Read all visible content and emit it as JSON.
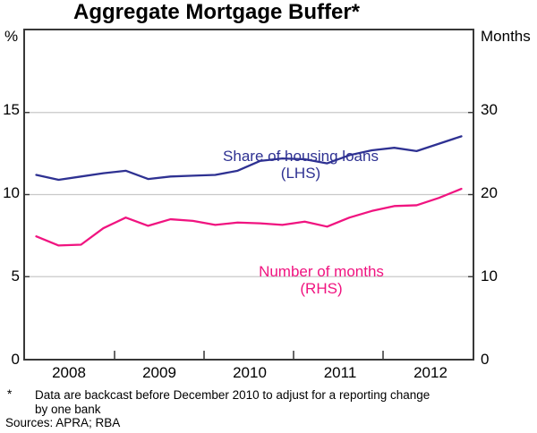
{
  "title": "Aggregate Mortgage Buffer*",
  "left_axis": {
    "unit": "%",
    "ticks": [
      "15",
      "10",
      "5",
      "0"
    ]
  },
  "right_axis": {
    "unit": "Months",
    "ticks": [
      "30",
      "20",
      "10",
      "0"
    ]
  },
  "x_axis": {
    "labels": [
      "2008",
      "2009",
      "2010",
      "2011",
      "2012"
    ]
  },
  "series_labels": {
    "lhs": {
      "line1": "Share of housing loans",
      "line2": "(LHS)"
    },
    "rhs": {
      "line1": "Number of months",
      "line2": "(RHS)"
    }
  },
  "footnote": {
    "marker": "*",
    "line1": "Data are backcast before December 2010 to adjust for a reporting change",
    "line2": "by one bank",
    "sources": "Sources: APRA; RBA"
  },
  "colors": {
    "lhs_line": "#2E3192",
    "rhs_line": "#F01480",
    "gridline": "#C9C9C9",
    "axis": "#383838",
    "tick": "#333333",
    "text": "#000000"
  },
  "chart_data": {
    "type": "line",
    "x_labels_quarters": [
      "2008 Q1",
      "2008 Q2",
      "2008 Q3",
      "2008 Q4",
      "2009 Q1",
      "2009 Q2",
      "2009 Q3",
      "2009 Q4",
      "2010 Q1",
      "2010 Q2",
      "2010 Q3",
      "2010 Q4",
      "2011 Q1",
      "2011 Q2",
      "2011 Q3",
      "2011 Q4",
      "2012 Q1",
      "2012 Q2",
      "2012 Q3",
      "2012 Q4"
    ],
    "x_start_year": 2008.125,
    "x_step_years": 0.25,
    "xlim": [
      2008,
      2013
    ],
    "left_ylim": [
      0,
      20
    ],
    "right_ylim": [
      0,
      40
    ],
    "left_yticks": [
      0,
      5,
      10,
      15
    ],
    "right_yticks": [
      0,
      10,
      20,
      30
    ],
    "gridline_values_left": [
      5,
      10,
      15
    ],
    "year_boundary_ticks": [
      2009,
      2010,
      2011,
      2012
    ],
    "grid": "horizontal",
    "legend_position": "inline-labels",
    "series": [
      {
        "name": "Share of housing loans (LHS)",
        "axis": "left",
        "unit": "%",
        "color": "#2E3192",
        "values": [
          11.2,
          10.9,
          11.1,
          11.3,
          11.45,
          10.95,
          11.1,
          11.15,
          11.2,
          11.45,
          12.05,
          12.2,
          12.15,
          11.9,
          12.4,
          12.7,
          12.85,
          12.65,
          13.1,
          13.55
        ]
      },
      {
        "name": "Number of months (RHS)",
        "axis": "right",
        "unit": "months",
        "color": "#F01480",
        "values": [
          14.9,
          13.8,
          13.9,
          15.9,
          17.2,
          16.2,
          17.0,
          16.8,
          16.3,
          16.6,
          16.5,
          16.3,
          16.7,
          16.1,
          17.2,
          18.0,
          18.6,
          18.7,
          19.6,
          20.7
        ]
      }
    ]
  }
}
